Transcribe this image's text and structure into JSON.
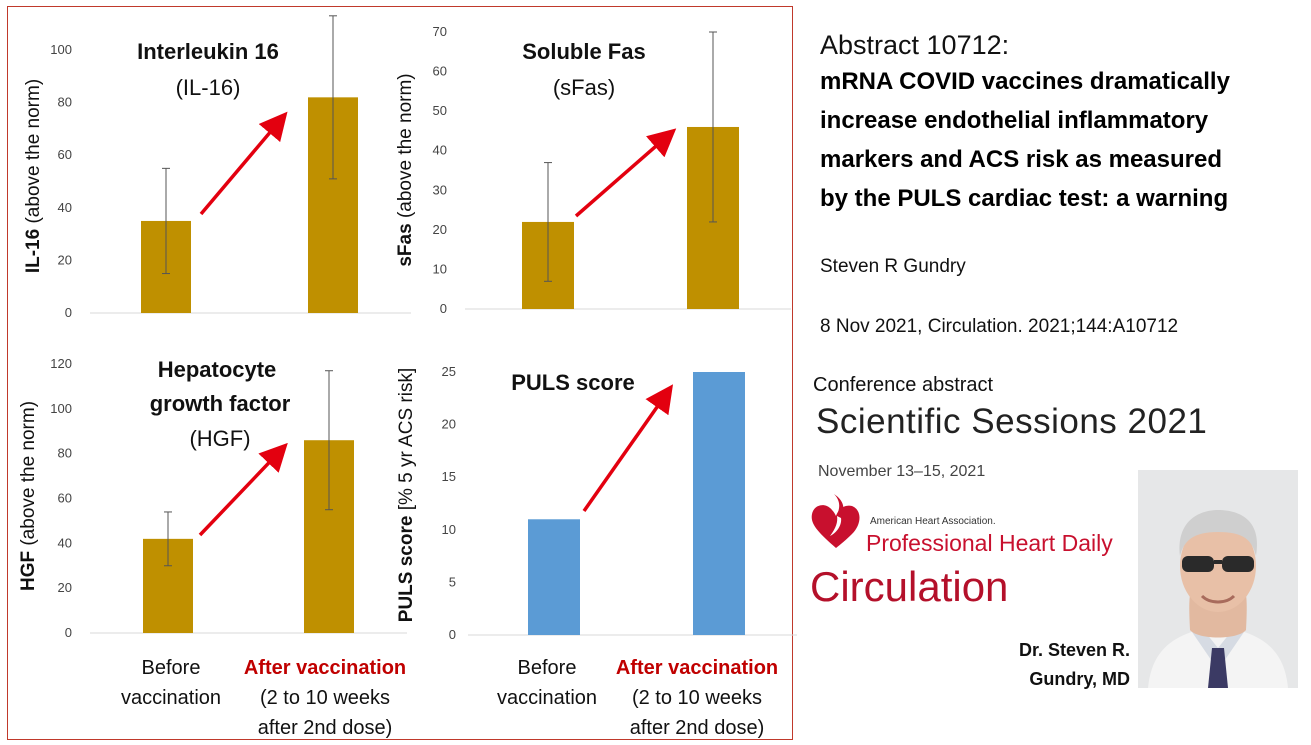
{
  "chart_data": [
    {
      "type": "bar",
      "title": "Interleukin 16",
      "subtitle": "(IL-16)",
      "ylabel_bold": "IL-16",
      "ylabel_rest": " (above the norm)",
      "ylim": [
        0,
        100
      ],
      "yticks": [
        0,
        20,
        40,
        60,
        80,
        100
      ],
      "values": [
        35,
        82
      ],
      "err_low": [
        15,
        51
      ],
      "err_high": [
        55,
        113
      ],
      "color": "#bf9000"
    },
    {
      "type": "bar",
      "title": "Soluble Fas",
      "subtitle": "(sFas)",
      "ylabel_bold": "sFas",
      "ylabel_rest": " (above the norm)",
      "ylim": [
        0,
        70
      ],
      "yticks": [
        0,
        10,
        20,
        30,
        40,
        50,
        60,
        70
      ],
      "values": [
        22,
        46
      ],
      "err_low": [
        7,
        22
      ],
      "err_high": [
        37,
        70
      ],
      "color": "#bf9000"
    },
    {
      "type": "bar",
      "title": "Hepatocyte",
      "title2": "growth factor",
      "subtitle": "(HGF)",
      "ylabel_bold": "HGF",
      "ylabel_rest": " (above the norm)",
      "ylim": [
        0,
        120
      ],
      "yticks": [
        0,
        20,
        40,
        60,
        80,
        100,
        120
      ],
      "values": [
        42,
        86
      ],
      "err_low": [
        30,
        55
      ],
      "err_high": [
        54,
        117
      ],
      "color": "#bf9000"
    },
    {
      "type": "bar",
      "title": "PULS score",
      "ylabel_bold": "PULS score",
      "ylabel_rest": " [% 5 yr ACS risk]",
      "ylim": [
        0,
        25
      ],
      "yticks": [
        0,
        5,
        10,
        15,
        20,
        25
      ],
      "values": [
        11,
        25
      ],
      "color": "#5b9bd5"
    }
  ],
  "categories": {
    "before_line1": "Before",
    "before_line2": "vaccination",
    "after_line1": "After vaccination",
    "after_line2": "(2 to 10 weeks",
    "after_line3": "after 2nd dose)"
  },
  "abstract": {
    "number": "Abstract 10712:",
    "title_lines": [
      "mRNA COVID vaccines dramatically",
      "increase endothelial inflammatory",
      "markers and ACS risk as measured",
      "by the PULS cardiac test: a warning"
    ],
    "author": "Steven R Gundry",
    "citation": "8 Nov 2021, Circulation. 2021;144:A10712"
  },
  "conference": {
    "label": "Conference abstract",
    "name": "Scientific Sessions 2021",
    "dates": "November 13–15, 2021",
    "aha_small": "American Heart Association.",
    "aha_phd": "Professional Heart Daily",
    "journal": "Circulation",
    "brand_color": "#c8102e"
  },
  "person": {
    "name_line1": "Dr. Steven R.",
    "name_line2": "Gundry, MD"
  }
}
